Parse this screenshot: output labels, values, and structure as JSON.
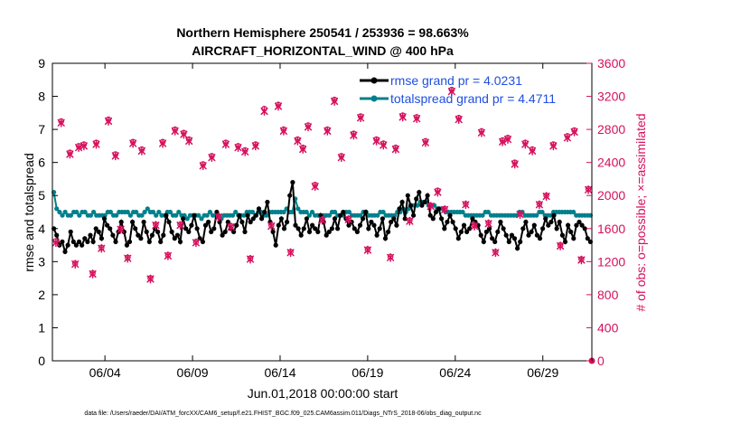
{
  "chart_data": {
    "type": "line",
    "title": "Northern Hemisphere 250541 / 253936 = 98.663%",
    "subtitle": "AIRCRAFT_HORIZONTAL_WIND @ 400 hPa",
    "xlabel": "Jun.01,2018 00:00:00 start",
    "ylabel": "rmse and totalspread",
    "y2label": "# of obs: o=possible; ×=assimilated",
    "footer": "data file: /Users/raeder/DAI/ATM_forcXX/CAM6_setup/f.e21.FHIST_BGC.f09_025.CAM6assim.011/Diags_NTrS_2018-06/obs_diag_output.nc",
    "xlim": [
      1,
      31.8
    ],
    "xticks": [
      4,
      9,
      14,
      19,
      24,
      29
    ],
    "xtick_labels": [
      "06/04",
      "06/09",
      "06/14",
      "06/19",
      "06/24",
      "06/29"
    ],
    "ylim": [
      0,
      9
    ],
    "yticks": [
      "0",
      "1",
      "2",
      "3",
      "4",
      "5",
      "6",
      "7",
      "8",
      "9"
    ],
    "y2lim": [
      0,
      3600
    ],
    "y2ticks": [
      "0",
      "400",
      "800",
      "1200",
      "1600",
      "2000",
      "2400",
      "2800",
      "3200",
      "3600"
    ],
    "colors": {
      "rmse": "#000000",
      "spread": "#00808c",
      "obs": "#d6105c",
      "legend_text": "#1f4fe0"
    },
    "series": [
      {
        "name": "rmse grand pr = 4.0231",
        "values": [
          4.0,
          3.8,
          3.5,
          3.6,
          3.3,
          3.5,
          3.9,
          3.6,
          3.5,
          3.6,
          3.5,
          3.7,
          3.6,
          3.8,
          3.6,
          4.0,
          3.9,
          3.7,
          4.3,
          4.1,
          4.0,
          3.8,
          3.6,
          3.9,
          4.2,
          3.9,
          3.5,
          3.6,
          4.2,
          4.0,
          3.8,
          3.7,
          4.2,
          3.9,
          3.6,
          3.8,
          4.0,
          3.9,
          3.6,
          3.8,
          4.4,
          4.2,
          3.9,
          3.7,
          3.8,
          3.6,
          4.3,
          4.0,
          3.9,
          4.1,
          4.4,
          4.0,
          3.7,
          3.6,
          4.1,
          4.2,
          3.9,
          4.0,
          4.5,
          4.2,
          3.8,
          3.9,
          4.2,
          4.0,
          3.9,
          4.1,
          4.4,
          4.2,
          3.9,
          4.4,
          4.2,
          4.3,
          4.4,
          4.6,
          4.3,
          4.5,
          4.8,
          4.2,
          3.9,
          3.5,
          4.1,
          4.3,
          4.0,
          4.2,
          5.0,
          5.4,
          4.1,
          4.0,
          3.8,
          4.0,
          4.3,
          3.9,
          4.1,
          4.0,
          3.9,
          4.4,
          4.2,
          3.8,
          3.9,
          4.0,
          4.3,
          4.0,
          4.4,
          4.5,
          4.3,
          4.1,
          4.2,
          4.0,
          3.9,
          4.1,
          4.3,
          4.5,
          4.0,
          4.2,
          4.1,
          3.8,
          4.0,
          4.3,
          3.7,
          3.9,
          4.2,
          4.3,
          4.1,
          4.6,
          4.8,
          4.3,
          5.0,
          4.7,
          4.4,
          4.9,
          5.1,
          4.7,
          4.8,
          5.0,
          4.4,
          4.3,
          4.5,
          4.6,
          4.3,
          4.0,
          4.2,
          4.4,
          4.2,
          4.0,
          3.7,
          3.9,
          4.1,
          3.9,
          4.0,
          4.3,
          4.2,
          4.1,
          3.8,
          3.6,
          3.9,
          4.0,
          3.7,
          3.6,
          3.9,
          4.2,
          4.0,
          3.8,
          3.6,
          3.8,
          3.7,
          3.4,
          3.6,
          4.0,
          4.2,
          3.8,
          3.9,
          4.1,
          3.8,
          3.7,
          4.0,
          4.3,
          4.1,
          4.2,
          4.4,
          4.0,
          4.2,
          3.8,
          3.6,
          4.1,
          3.9,
          3.7,
          4.1,
          4.2,
          4.1,
          4.0,
          3.7,
          3.6
        ]
      },
      {
        "name": "totalspread grand pr = 4.4711",
        "values": [
          5.1,
          4.6,
          4.5,
          4.4,
          4.5,
          4.4,
          4.4,
          4.5,
          4.5,
          4.4,
          4.5,
          4.5,
          4.4,
          4.4,
          4.5,
          4.4,
          4.4,
          4.4,
          4.4,
          4.5,
          4.5,
          4.4,
          4.4,
          4.5,
          4.5,
          4.5,
          4.5,
          4.4,
          4.5,
          4.5,
          4.4,
          4.4,
          4.5,
          4.6,
          4.5,
          4.5,
          4.4,
          4.5,
          4.4,
          4.4,
          4.5,
          4.5,
          4.4,
          4.4,
          4.5,
          4.4,
          4.4,
          4.3,
          4.4,
          4.4,
          4.4,
          4.4,
          4.3,
          4.4,
          4.4,
          4.5,
          4.4,
          4.4,
          4.4,
          4.3,
          4.4,
          4.4,
          4.4,
          4.4,
          4.5,
          4.4,
          4.4,
          4.4,
          4.5,
          4.5,
          4.5,
          4.4,
          4.5,
          4.5,
          4.4,
          4.4,
          4.5,
          4.5,
          4.5,
          4.5,
          4.5,
          4.5,
          4.6,
          4.5,
          4.5,
          4.9,
          4.6,
          4.5,
          4.5,
          4.5,
          4.4,
          4.5,
          4.4,
          4.4,
          4.4,
          4.4,
          4.4,
          4.4,
          4.5,
          4.5,
          4.4,
          4.4,
          4.4,
          4.5,
          4.5,
          4.4,
          4.4,
          4.4,
          4.4,
          4.5,
          4.5,
          4.4,
          4.4,
          4.4,
          4.4,
          4.5,
          4.5,
          4.4,
          4.4,
          4.4,
          4.4,
          4.5,
          4.5,
          4.6,
          4.5,
          4.6,
          4.7,
          4.7,
          4.7,
          4.8,
          4.8,
          4.8,
          4.7,
          4.7,
          4.7,
          4.6,
          4.6,
          4.6,
          4.5,
          4.5,
          4.5,
          4.5,
          4.5,
          4.5,
          4.5,
          4.4,
          4.4,
          4.4,
          4.4,
          4.4,
          4.4,
          4.4,
          4.5,
          4.5,
          4.4,
          4.4,
          4.4,
          4.4,
          4.4,
          4.4,
          4.4,
          4.4,
          4.4,
          4.4,
          4.5,
          4.5,
          4.4,
          4.4,
          4.4,
          4.4,
          4.4,
          4.5,
          4.5,
          4.4,
          4.4,
          4.4,
          4.5,
          4.5,
          4.5,
          4.5,
          4.5,
          4.5,
          4.5,
          4.5,
          4.4,
          4.4,
          4.4,
          4.4,
          4.4,
          4.4
        ]
      }
    ],
    "obs": {
      "x": [
        1.2,
        1.5,
        2.0,
        2.3,
        2.5,
        2.8,
        3.3,
        3.5,
        3.8,
        4.2,
        4.6,
        4.9,
        5.3,
        5.6,
        6.1,
        6.6,
        6.9,
        7.3,
        7.6,
        8.0,
        8.3,
        8.5,
        8.8,
        9.2,
        9.6,
        10.1,
        10.5,
        10.9,
        11.2,
        11.6,
        12.0,
        12.3,
        12.6,
        13.1,
        13.5,
        13.9,
        14.2,
        14.6,
        15.0,
        15.3,
        15.6,
        16.0,
        16.4,
        16.7,
        17.1,
        17.5,
        17.9,
        18.2,
        18.6,
        19.0,
        19.5,
        19.9,
        20.3,
        20.6,
        21.0,
        21.4,
        21.8,
        22.3,
        22.6,
        23.0,
        23.4,
        23.8,
        24.2,
        24.6,
        25.1,
        25.5,
        25.9,
        26.3,
        26.7,
        27.0,
        27.4,
        27.7,
        28.0,
        28.4,
        28.8,
        29.2,
        29.6,
        30.0,
        30.4,
        30.8,
        31.2,
        31.6
      ],
      "possible": [
        1450,
        2900,
        2520,
        1180,
        2600,
        2620,
        1060,
        2640,
        1370,
        2920,
        2500,
        1600,
        1250,
        2650,
        2560,
        1000,
        1650,
        2650,
        1280,
        2800,
        1650,
        2760,
        2680,
        1440,
        2380,
        2480,
        1750,
        2640,
        1630,
        2600,
        2550,
        1240,
        2620,
        3050,
        1640,
        3100,
        2800,
        1320,
        2680,
        2580,
        2850,
        2130,
        1710,
        2800,
        3160,
        2480,
        1720,
        2750,
        2960,
        1350,
        2680,
        2630,
        1260,
        2580,
        2970,
        1700,
        2950,
        2660,
        1880,
        2060,
        1840,
        3280,
        2940,
        1900,
        1640,
        2780,
        1670,
        1320,
        2670,
        2700,
        2400,
        1780,
        2640,
        2560,
        1900,
        2000,
        2620,
        1400,
        2720,
        2790,
        1230,
        2080
      ],
      "assimilated": [
        1430,
        2880,
        2500,
        1170,
        2580,
        2600,
        1050,
        2620,
        1360,
        2900,
        2480,
        1590,
        1240,
        2630,
        2540,
        990,
        1640,
        2630,
        1270,
        2780,
        1640,
        2740,
        2660,
        1430,
        2360,
        2460,
        1740,
        2620,
        1620,
        2580,
        2530,
        1230,
        2600,
        3020,
        1630,
        3080,
        2780,
        1310,
        2660,
        2560,
        2830,
        2110,
        1700,
        2780,
        3140,
        2460,
        1710,
        2730,
        2940,
        1340,
        2660,
        2610,
        1250,
        2560,
        2950,
        1690,
        2930,
        2640,
        1870,
        2040,
        1830,
        3260,
        2920,
        1890,
        1630,
        2760,
        1660,
        1310,
        2650,
        2680,
        2380,
        1770,
        2620,
        2540,
        1890,
        1990,
        2600,
        1390,
        2700,
        2770,
        1220,
        2070
      ]
    }
  }
}
